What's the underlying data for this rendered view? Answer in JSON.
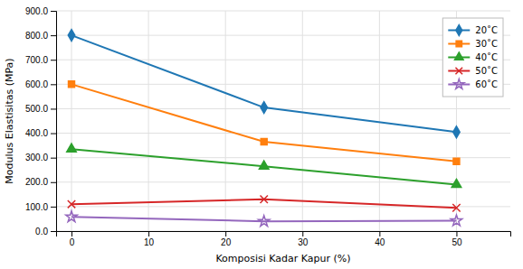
{
  "chart_data": {
    "type": "line",
    "xlabel": "Komposisi Kadar Kapur (%)",
    "ylabel": "Modulus Elastisitas (MPa)",
    "x": [
      0,
      25,
      50
    ],
    "series": [
      {
        "name": "20˚C",
        "values": [
          800,
          505,
          405
        ],
        "marker": "diamond"
      },
      {
        "name": "30˚C",
        "values": [
          600,
          365,
          285
        ],
        "marker": "square"
      },
      {
        "name": "40˚C",
        "values": [
          335,
          265,
          190
        ],
        "marker": "triangle"
      },
      {
        "name": "50˚C",
        "values": [
          110,
          130,
          95
        ],
        "marker": "x"
      },
      {
        "name": "60˚C",
        "values": [
          58,
          40,
          42
        ],
        "marker": "star"
      }
    ],
    "xlim": [
      -2,
      57
    ],
    "xticks": [
      0,
      10,
      20,
      30,
      40,
      50
    ],
    "ylim": [
      0,
      900
    ],
    "yticks": [
      {
        "value": 0.0,
        "label": "0.0"
      },
      {
        "value": 100.0,
        "label": "100.0"
      },
      {
        "value": 200.0,
        "label": "200.0"
      },
      {
        "value": 300.0,
        "label": "300.0"
      },
      {
        "value": 400.0,
        "label": "400.0"
      },
      {
        "value": 500.0,
        "label": "500.0"
      },
      {
        "value": 600.0,
        "label": "600.0"
      },
      {
        "value": 700.0,
        "label": "700.0"
      },
      {
        "value": 800.0,
        "label": "800.0"
      },
      {
        "value": 900.0,
        "label": "900.0"
      }
    ],
    "grid": true,
    "legend": "upper-right"
  }
}
